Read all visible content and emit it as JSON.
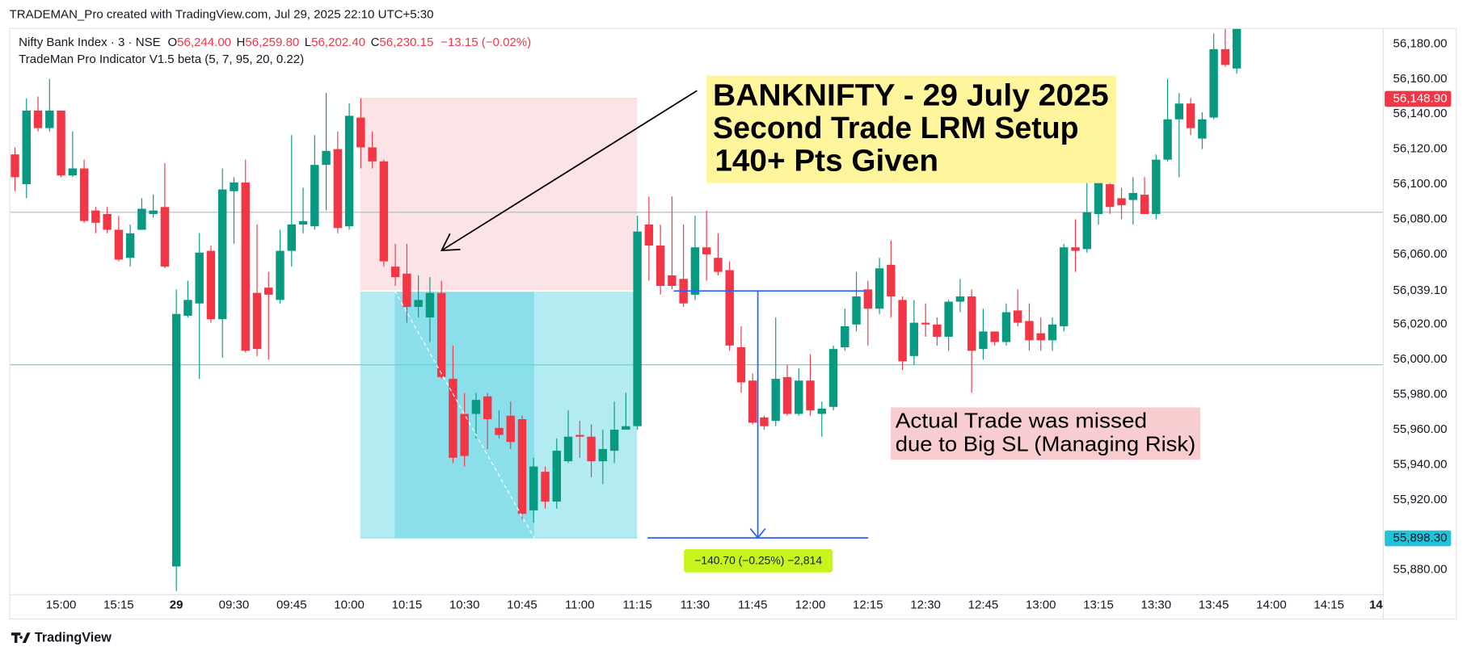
{
  "header": {
    "title": "TRADEMAN_Pro created with TradingView.com, Jul 29, 2025 22:10 UTC+5:30",
    "brand": "TradingView"
  },
  "legend": {
    "symbol": "Nifty Bank Index · 3 · NSE",
    "ohlc": [
      {
        "key": "O",
        "value": "56,244.00"
      },
      {
        "key": "H",
        "value": "56,259.80"
      },
      {
        "key": "L",
        "value": "56,202.40"
      },
      {
        "key": "C",
        "value": "56,230.15"
      }
    ],
    "change": "−13.15 (−0.02%)",
    "indicator": "TradeMan Pro Indicator V1.5 beta (5, 7, 95, 20, 0.22)"
  },
  "annotations": {
    "setup": [
      "BANKNIFTY - 29 July 2025",
      "Second Trade LRM Setup",
      "140+ Pts Given"
    ],
    "missed": [
      "Actual Trade was missed",
      "due to Big SL (Managing Risk)"
    ]
  },
  "chart_data": {
    "type": "candlestick",
    "colors": {
      "up": "#089981",
      "down": "#f23645"
    },
    "ylim": [
      55865,
      56195
    ],
    "yticks": [
      {
        "value": 55880,
        "label": "55,880.00"
      },
      {
        "value": 55920,
        "label": "55,920.00"
      },
      {
        "value": 55940,
        "label": "55,940.00"
      },
      {
        "value": 55960,
        "label": "55,960.00"
      },
      {
        "value": 55980,
        "label": "55,980.00"
      },
      {
        "value": 56000,
        "label": "56,000.00"
      },
      {
        "value": 56020,
        "label": "56,020.00"
      },
      {
        "value": 56060,
        "label": "56,060.00"
      },
      {
        "value": 56080,
        "label": "56,080.00"
      },
      {
        "value": 56100,
        "label": "56,100.00"
      },
      {
        "value": 56120,
        "label": "56,120.00"
      },
      {
        "value": 56140,
        "label": "56,140.00"
      },
      {
        "value": 56160,
        "label": "56,160.00"
      },
      {
        "value": 56180,
        "label": "56,180.00"
      }
    ],
    "time_labels": [
      "15:00",
      "15:15",
      "29",
      "09:30",
      "09:45",
      "10:00",
      "10:15",
      "10:30",
      "10:45",
      "11:00",
      "11:15",
      "11:30",
      "11:45",
      "12:00",
      "12:15",
      "12:30",
      "12:45",
      "13:00",
      "13:15",
      "13:30",
      "13:45",
      "14:00",
      "14:15",
      "14"
    ],
    "levels": [
      {
        "value": 56084,
        "color": "#b2b5be"
      },
      {
        "value": 55997,
        "color": "#4be0b0"
      }
    ],
    "position": {
      "stop": {
        "value": 56148.9,
        "label": "56,148.90"
      },
      "entry": {
        "value": 56039.1,
        "label": "56,039.10"
      },
      "target": {
        "value": 55898.3,
        "label": "55,898.30"
      }
    },
    "measure": {
      "label": "−140.70 (−0.25%) −2,814"
    },
    "ohlc": [
      [
        56117,
        56121,
        56096,
        56104
      ],
      [
        56100,
        56149,
        56092,
        56142
      ],
      [
        56142,
        56150,
        56130,
        56132
      ],
      [
        56132,
        56160,
        56130,
        56142
      ],
      [
        56142,
        56142,
        56104,
        56105
      ],
      [
        56105,
        56130,
        56104,
        56109
      ],
      [
        56109,
        56114,
        56078,
        56079
      ],
      [
        56085,
        56087,
        56072,
        56078
      ],
      [
        56083,
        56087,
        56072,
        56074
      ],
      [
        56074,
        56082,
        56056,
        56057
      ],
      [
        56058,
        56077,
        56053,
        56072
      ],
      [
        56074,
        56092,
        56074,
        56086
      ],
      [
        56083,
        56094,
        56081,
        56085
      ],
      [
        56087,
        56112,
        56052,
        56053
      ],
      [
        55882,
        56040,
        55868,
        56026
      ],
      [
        56025,
        56045,
        56024,
        56034
      ],
      [
        56032,
        56072,
        55989,
        56061
      ],
      [
        56062,
        56065,
        56021,
        56023
      ],
      [
        56023,
        56109,
        56001,
        56097
      ],
      [
        56096,
        56104,
        56066,
        56101
      ],
      [
        56101,
        56114,
        56004,
        56005
      ],
      [
        56038,
        56077,
        56002,
        56006
      ],
      [
        56041,
        56050,
        56000,
        56037
      ],
      [
        56034,
        56074,
        56032,
        56062
      ],
      [
        56062,
        56128,
        56053,
        56077
      ],
      [
        56077,
        56098,
        56072,
        56079
      ],
      [
        56076,
        56128,
        56074,
        56111
      ],
      [
        56111,
        56152,
        56085,
        56119
      ],
      [
        56120,
        56130,
        56072,
        56075
      ],
      [
        56076,
        56146,
        56074,
        56139
      ],
      [
        56138,
        56149,
        56109,
        56121
      ],
      [
        56121,
        56130,
        56109,
        56113
      ],
      [
        56113,
        56114,
        56053,
        56056
      ],
      [
        56053,
        56066,
        56042,
        56047
      ],
      [
        56049,
        56066,
        56021,
        56030
      ],
      [
        56030,
        56048,
        56024,
        56034
      ],
      [
        56024,
        56047,
        56010,
        56038
      ],
      [
        56038,
        56045,
        55989,
        55990
      ],
      [
        55989,
        56008,
        55941,
        55944
      ],
      [
        55969,
        55981,
        55939,
        55945
      ],
      [
        55969,
        55981,
        55955,
        55977
      ],
      [
        55979,
        55981,
        55949,
        55966
      ],
      [
        55961,
        55971,
        55955,
        55957
      ],
      [
        55968,
        55976,
        55949,
        55953
      ],
      [
        55966,
        55968,
        55909,
        55912
      ],
      [
        55914,
        55944,
        55907,
        55939
      ],
      [
        55936,
        55939,
        55915,
        55919
      ],
      [
        55919,
        55955,
        55915,
        55948
      ],
      [
        55942,
        55971,
        55941,
        55956
      ],
      [
        55957,
        55965,
        55944,
        55956
      ],
      [
        55956,
        55963,
        55933,
        55942
      ],
      [
        55942,
        55960,
        55929,
        55949
      ],
      [
        55948,
        55976,
        55941,
        55960
      ],
      [
        55960,
        55981,
        55960,
        55962
      ],
      [
        55962,
        56082,
        55960,
        56073
      ],
      [
        56077,
        56093,
        56045,
        56065
      ],
      [
        56065,
        56077,
        56037,
        56042
      ],
      [
        56048,
        56093,
        56040,
        56042
      ],
      [
        56046,
        56077,
        56030,
        56032
      ],
      [
        56037,
        56082,
        56034,
        56064
      ],
      [
        56064,
        56085,
        56045,
        56060
      ],
      [
        56058,
        56072,
        56048,
        56050
      ],
      [
        56051,
        56056,
        56005,
        56008
      ],
      [
        56007,
        56019,
        55981,
        55987
      ],
      [
        55988,
        55992,
        55963,
        55964
      ],
      [
        55967,
        55968,
        55960,
        55962
      ],
      [
        55965,
        56024,
        55962,
        55989
      ],
      [
        55990,
        55997,
        55968,
        55969
      ],
      [
        55969,
        55995,
        55968,
        55988
      ],
      [
        55988,
        56003,
        55968,
        55971
      ],
      [
        55969,
        55976,
        55956,
        55972
      ],
      [
        55973,
        56008,
        55971,
        56006
      ],
      [
        56007,
        56029,
        56005,
        56019
      ],
      [
        56020,
        56050,
        56016,
        56036
      ],
      [
        56040,
        56045,
        56008,
        56029
      ],
      [
        56029,
        56058,
        56026,
        56052
      ],
      [
        56054,
        56068,
        56024,
        56036
      ],
      [
        56034,
        56036,
        55994,
        55999
      ],
      [
        56002,
        56034,
        55997,
        56021
      ],
      [
        56021,
        56032,
        56013,
        56020
      ],
      [
        56020,
        56024,
        56008,
        56013
      ],
      [
        56013,
        56034,
        56005,
        56033
      ],
      [
        56033,
        56046,
        56027,
        56036
      ],
      [
        56036,
        56040,
        55981,
        56005
      ],
      [
        56006,
        56029,
        56000,
        56016
      ],
      [
        56016,
        56016,
        56008,
        56010
      ],
      [
        56010,
        56032,
        56008,
        56027
      ],
      [
        56028,
        56040,
        56019,
        56021
      ],
      [
        56022,
        56032,
        56005,
        56011
      ],
      [
        56015,
        56024,
        56005,
        56011
      ],
      [
        56011,
        56024,
        56005,
        56020
      ],
      [
        56019,
        56066,
        56016,
        56064
      ],
      [
        56064,
        56080,
        56050,
        56062
      ],
      [
        56063,
        56101,
        56061,
        56084
      ],
      [
        56083,
        56114,
        56077,
        56101
      ],
      [
        56100,
        56101,
        56083,
        56087
      ],
      [
        56092,
        56098,
        56080,
        56088
      ],
      [
        56091,
        56104,
        56077,
        56095
      ],
      [
        56094,
        56104,
        56083,
        56083
      ],
      [
        56083,
        56117,
        56080,
        56114
      ],
      [
        56114,
        56160,
        56113,
        56137
      ],
      [
        56137,
        56152,
        56104,
        56146
      ],
      [
        56146,
        56149,
        56128,
        56132
      ],
      [
        56126,
        56141,
        56120,
        56137
      ],
      [
        56138,
        56186,
        56137,
        56177
      ],
      [
        56177,
        56189,
        56167,
        56168
      ],
      [
        56166,
        56192,
        56163,
        56189
      ]
    ]
  }
}
